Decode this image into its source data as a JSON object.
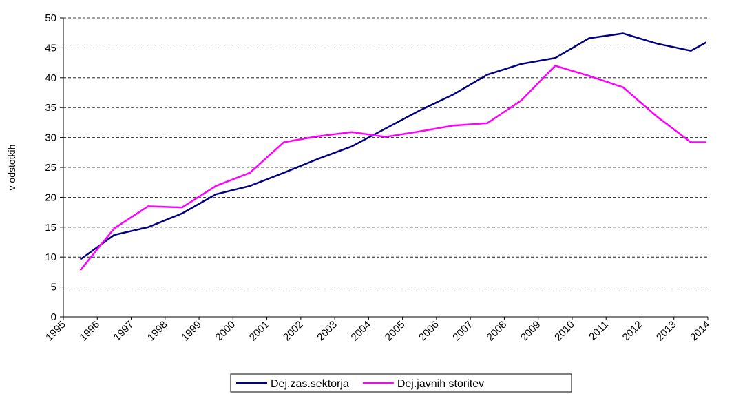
{
  "chart_data": {
    "type": "line",
    "y_label": "v odstotkih",
    "x": [
      1995.5,
      1996.5,
      1997.5,
      1998.5,
      1999.5,
      2000.5,
      2001.5,
      2002.5,
      2003.5,
      2004.5,
      2005.5,
      2006.5,
      2007.5,
      2008.5,
      2009.5,
      2010.5,
      2011.5,
      2012.5,
      2013.5,
      2013.95
    ],
    "series": [
      {
        "name": "Dej.zas.sektorja",
        "color": "#000080",
        "values": [
          9.6,
          13.7,
          15.0,
          17.3,
          20.5,
          21.9,
          24.1,
          26.4,
          28.5,
          31.5,
          34.5,
          37.2,
          40.5,
          42.3,
          43.3,
          46.6,
          47.4,
          45.7,
          44.5,
          45.9
        ]
      },
      {
        "name": "Dej.javnih storitev",
        "color": "#ff00ff",
        "values": [
          7.8,
          14.8,
          18.5,
          18.3,
          21.9,
          24.1,
          29.2,
          30.2,
          30.9,
          30.1,
          31.0,
          32.0,
          32.4,
          36.2,
          42.0,
          40.3,
          38.4,
          33.5,
          29.2,
          29.2
        ]
      }
    ],
    "xlim": [
      1995,
      2014
    ],
    "xticks": [
      1995,
      1996,
      1997,
      1998,
      1999,
      2000,
      2001,
      2002,
      2003,
      2004,
      2005,
      2006,
      2007,
      2008,
      2009,
      2010,
      2011,
      2012,
      2013,
      2014
    ],
    "ylim": [
      0,
      50
    ],
    "yticks": [
      0,
      5,
      10,
      15,
      20,
      25,
      30,
      35,
      40,
      45,
      50
    ],
    "grid": true,
    "legend": "bottom"
  }
}
